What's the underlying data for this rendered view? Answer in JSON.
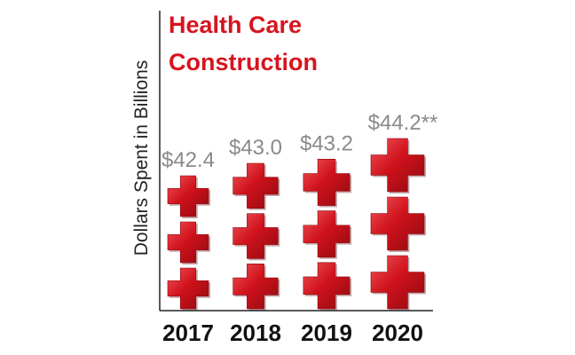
{
  "chart_data": {
    "type": "bar",
    "title": "Health Care Construction",
    "title_lines": [
      "Health Care",
      "Construction"
    ],
    "ylabel": "Dollars Spent in Billions",
    "xlabel": "",
    "categories": [
      "2017",
      "2018",
      "2019",
      "2020"
    ],
    "values": [
      42.4,
      43.0,
      43.2,
      44.2
    ],
    "value_labels": [
      "$42.4",
      "$43.0",
      "$43.2",
      "$44.2**"
    ],
    "marker": "red-cross-icon",
    "crosses_per_bar": 3,
    "colors": {
      "title": "#d7141e",
      "cross": "#d0121c",
      "cross_dark": "#8e0a10",
      "cross_light": "#f0555a",
      "value_label": "#8a8a8a",
      "axis": "#222222",
      "tick_label": "#111111"
    }
  }
}
